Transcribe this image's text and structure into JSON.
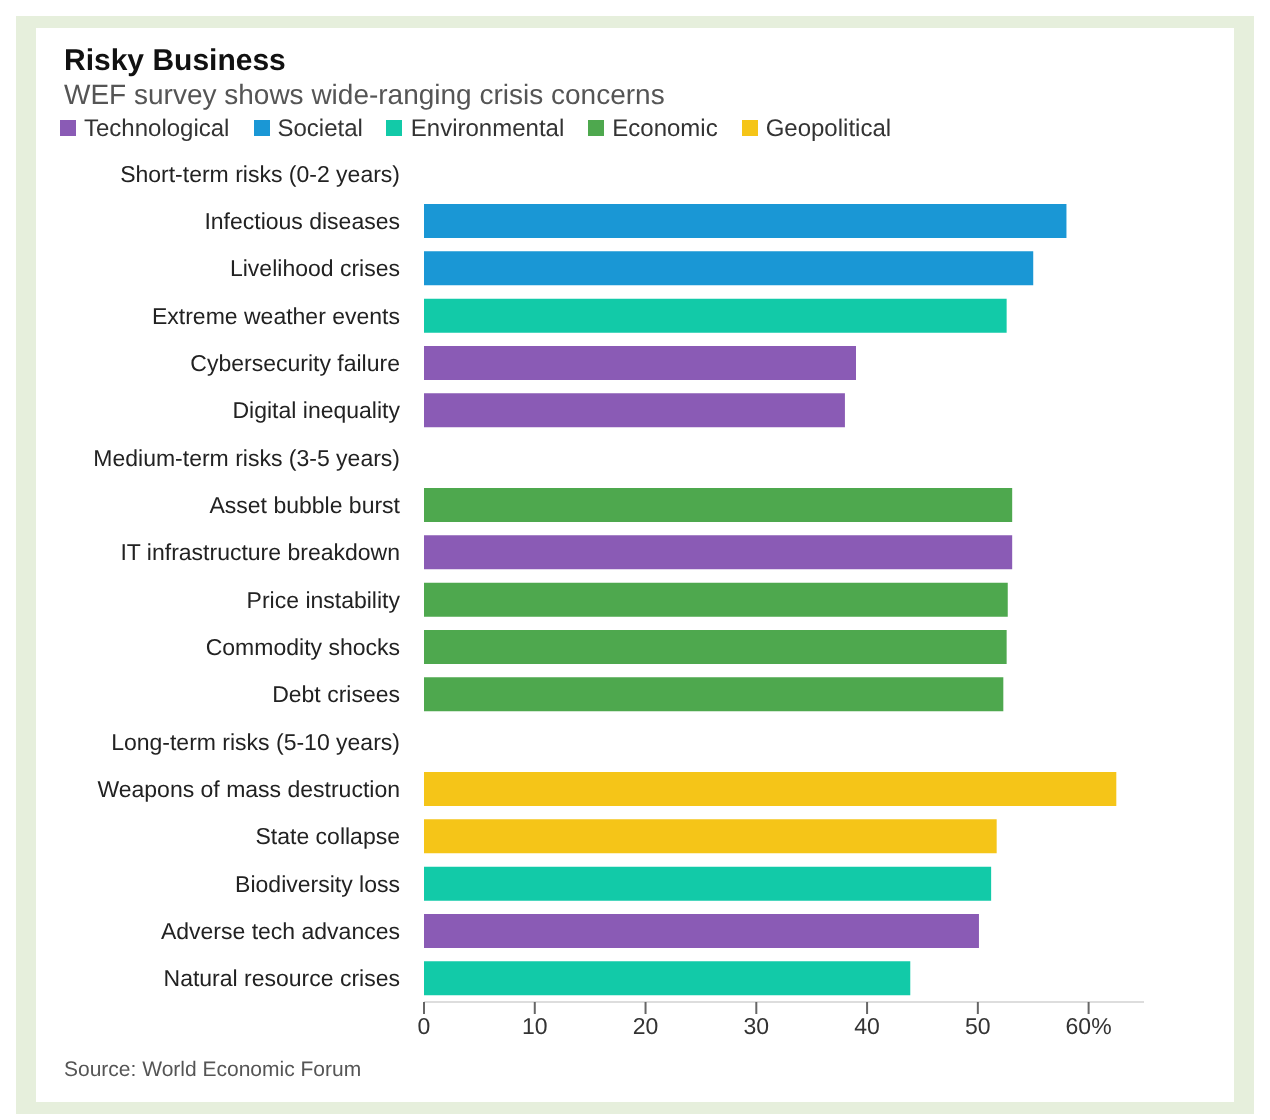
{
  "chart_data": {
    "type": "bar",
    "orientation": "horizontal",
    "stacked": true,
    "title": "Risky Business",
    "subtitle": "WEF survey shows wide-ranging crisis concerns",
    "categories": [
      "Short-term risks (0-2 years)",
      "Infectious diseases",
      "Livelihood crises",
      "Extreme weather events",
      "Cybersecurity failure",
      "Digital inequality",
      "Medium-term risks (3-5 years)",
      "Asset bubble burst",
      "IT infrastructure breakdown",
      "Price instability",
      "Commodity shocks",
      "Debt crisees",
      "Long-term risks (5-10 years)",
      "Weapons of mass destruction",
      "State collapse",
      "Biodiversity loss",
      "Adverse tech advances",
      "Natural resource crises"
    ],
    "series": [
      {
        "name": "Technological",
        "color": "#8a5bb5",
        "values": [
          null,
          null,
          null,
          null,
          39,
          38,
          null,
          null,
          53.1,
          null,
          null,
          null,
          null,
          null,
          null,
          null,
          50.1,
          null
        ]
      },
      {
        "name": "Societal",
        "color": "#1a97d5",
        "values": [
          null,
          58,
          55,
          null,
          null,
          null,
          null,
          null,
          null,
          null,
          null,
          null,
          null,
          null,
          null,
          null,
          null,
          null
        ]
      },
      {
        "name": "Environmental",
        "color": "#12caa8",
        "values": [
          null,
          null,
          null,
          52.6,
          null,
          null,
          null,
          null,
          null,
          null,
          null,
          null,
          null,
          null,
          null,
          51.2,
          null,
          43.9
        ]
      },
      {
        "name": "Economic",
        "color": "#4ea84e",
        "values": [
          null,
          null,
          null,
          null,
          null,
          null,
          null,
          53.1,
          null,
          52.7,
          52.6,
          52.3,
          null,
          null,
          null,
          null,
          null,
          null
        ]
      },
      {
        "name": "Geopolitical",
        "color": "#f5c518",
        "values": [
          null,
          null,
          null,
          null,
          null,
          null,
          null,
          null,
          null,
          null,
          null,
          null,
          null,
          62.5,
          51.7,
          null,
          null,
          null
        ]
      }
    ],
    "xlim": [
      0,
      65
    ],
    "xticks": [
      0,
      10,
      20,
      30,
      40,
      50,
      {
        "value": 60,
        "label": "60%"
      }
    ],
    "grid": false,
    "legend": "top left",
    "annotations": [
      "Source: World Economic Forum"
    ]
  }
}
